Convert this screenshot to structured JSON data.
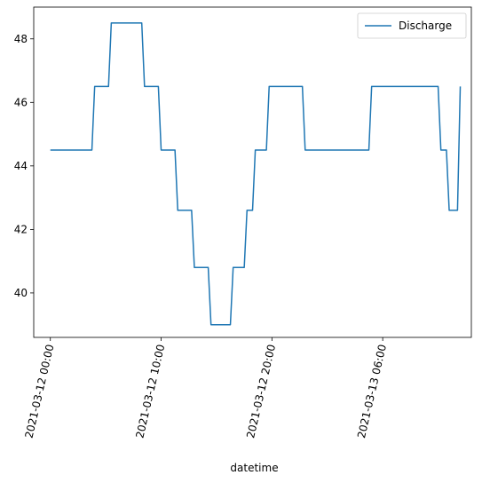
{
  "chart_data": {
    "type": "line",
    "title": "",
    "xlabel": "datetime",
    "ylabel": "",
    "x_axis": {
      "type": "datetime",
      "range": [
        "2021-03-11 22:30",
        "2021-03-13 14:00"
      ],
      "ticks": [
        {
          "value": "2021-03-12 00:00",
          "label": "2021-03-12 00:00"
        },
        {
          "value": "2021-03-12 10:00",
          "label": "2021-03-12 10:00"
        },
        {
          "value": "2021-03-12 20:00",
          "label": "2021-03-12 20:00"
        },
        {
          "value": "2021-03-13 06:00",
          "label": "2021-03-13 06:00"
        }
      ]
    },
    "y_axis": {
      "range": [
        38.6,
        49.0
      ],
      "ticks": [
        40,
        42,
        44,
        46,
        48
      ]
    },
    "grid": false,
    "legend": {
      "position": "top-right",
      "entries": [
        "Discharge"
      ]
    },
    "series": [
      {
        "name": "Discharge",
        "color": "#1f77b4",
        "points": [
          [
            "2021-03-12 00:00",
            44.5
          ],
          [
            "2021-03-12 03:45",
            44.5
          ],
          [
            "2021-03-12 04:00",
            46.5
          ],
          [
            "2021-03-12 05:15",
            46.5
          ],
          [
            "2021-03-12 05:30",
            48.5
          ],
          [
            "2021-03-12 08:15",
            48.5
          ],
          [
            "2021-03-12 08:30",
            46.5
          ],
          [
            "2021-03-12 09:45",
            46.5
          ],
          [
            "2021-03-12 10:00",
            44.5
          ],
          [
            "2021-03-12 11:15",
            44.5
          ],
          [
            "2021-03-12 11:30",
            42.6
          ],
          [
            "2021-03-12 12:45",
            42.6
          ],
          [
            "2021-03-12 13:00",
            40.8
          ],
          [
            "2021-03-12 14:15",
            40.8
          ],
          [
            "2021-03-12 14:30",
            39.0
          ],
          [
            "2021-03-12 16:15",
            39.0
          ],
          [
            "2021-03-12 16:30",
            40.8
          ],
          [
            "2021-03-12 17:30",
            40.8
          ],
          [
            "2021-03-12 17:45",
            42.6
          ],
          [
            "2021-03-12 18:15",
            42.6
          ],
          [
            "2021-03-12 18:30",
            44.5
          ],
          [
            "2021-03-12 19:30",
            44.5
          ],
          [
            "2021-03-12 19:45",
            46.5
          ],
          [
            "2021-03-12 22:45",
            46.5
          ],
          [
            "2021-03-12 23:00",
            44.5
          ],
          [
            "2021-03-13 04:45",
            44.5
          ],
          [
            "2021-03-13 05:00",
            46.5
          ],
          [
            "2021-03-13 11:00",
            46.5
          ],
          [
            "2021-03-13 11:15",
            44.5
          ],
          [
            "2021-03-13 11:45",
            44.5
          ],
          [
            "2021-03-13 12:00",
            42.6
          ],
          [
            "2021-03-13 12:45",
            42.6
          ],
          [
            "2021-03-13 13:00",
            46.5
          ]
        ]
      }
    ]
  }
}
